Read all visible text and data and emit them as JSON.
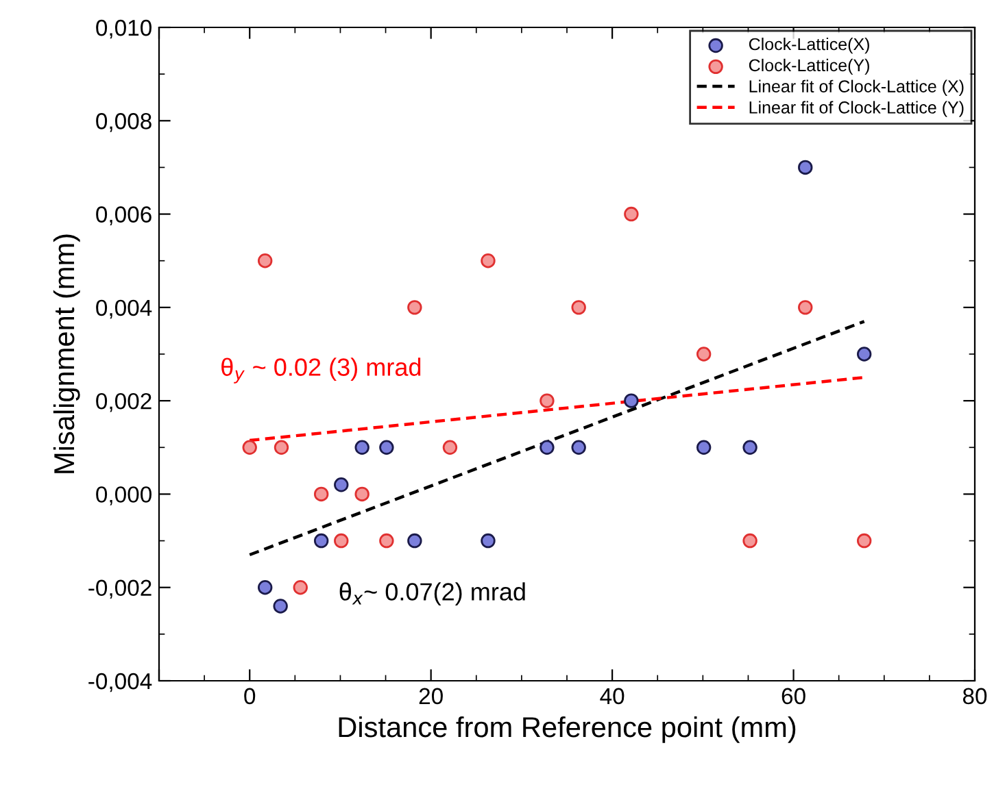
{
  "chart_data": {
    "type": "scatter",
    "xlabel": "Distance from Reference point (mm)",
    "ylabel": "Misalignment (mm)",
    "xlim": [
      -10,
      80
    ],
    "xticks": [
      {
        "value": -10,
        "label": null
      },
      0,
      20,
      40,
      60,
      80
    ],
    "ylim": [
      -0.004,
      0.01
    ],
    "yticks": [
      {
        "value": -0.004,
        "label": "-0,004"
      },
      {
        "value": -0.002,
        "label": "-0,002"
      },
      {
        "value": 0.0,
        "label": "0,000"
      },
      {
        "value": 0.002,
        "label": "0,002"
      },
      {
        "value": 0.004,
        "label": "0,004"
      },
      {
        "value": 0.006,
        "label": "0,006"
      },
      {
        "value": 0.008,
        "label": "0,008"
      },
      {
        "value": 0.01,
        "label": "0,010"
      }
    ],
    "grid": false,
    "legend": "top right",
    "series": [
      {
        "name": "Clock-Lattice(X)",
        "marker": "circle",
        "color": "#7b7fdc",
        "x": [
          1.7,
          3.4,
          7.9,
          10.1,
          12.4,
          15.1,
          18.2,
          26.3,
          32.8,
          36.3,
          42.1,
          50.1,
          55.2,
          61.3,
          67.8
        ],
        "values": [
          -0.002,
          -0.0024,
          -0.001,
          0.0002,
          0.001,
          0.001,
          -0.001,
          -0.001,
          0.001,
          0.001,
          0.002,
          0.001,
          0.001,
          0.007,
          0.003
        ]
      },
      {
        "name": "Clock-Lattice(Y)",
        "marker": "circle",
        "color": "#f59a9a",
        "x": [
          0,
          1.7,
          3.5,
          5.6,
          7.9,
          10.1,
          12.4,
          15.1,
          18.2,
          22.1,
          26.3,
          32.8,
          36.3,
          42.1,
          50.1,
          55.2,
          61.3,
          67.8
        ],
        "values": [
          0.001,
          0.005,
          0.001,
          -0.002,
          0.0,
          -0.001,
          0.0,
          -0.001,
          0.004,
          0.001,
          0.005,
          0.002,
          0.004,
          0.006,
          0.003,
          -0.001,
          0.004,
          -0.001
        ]
      },
      {
        "name": "Linear fit of Clock-Lattice (X)",
        "type": "line",
        "line_style": "dashed",
        "color": "#000000",
        "x": [
          0,
          67.8
        ],
        "values": [
          -0.0013,
          0.0037
        ]
      },
      {
        "name": "Linear fit of Clock-Lattice (Y)",
        "type": "line",
        "line_style": "dashed",
        "color": "#ff0000",
        "x": [
          0,
          67.8
        ],
        "values": [
          0.00115,
          0.0025
        ]
      }
    ],
    "annotations": [
      "θ$_{y}$ ~ 0.02 (3) mrad",
      "θ$_{x}$~ 0.07(2) mrad"
    ]
  }
}
